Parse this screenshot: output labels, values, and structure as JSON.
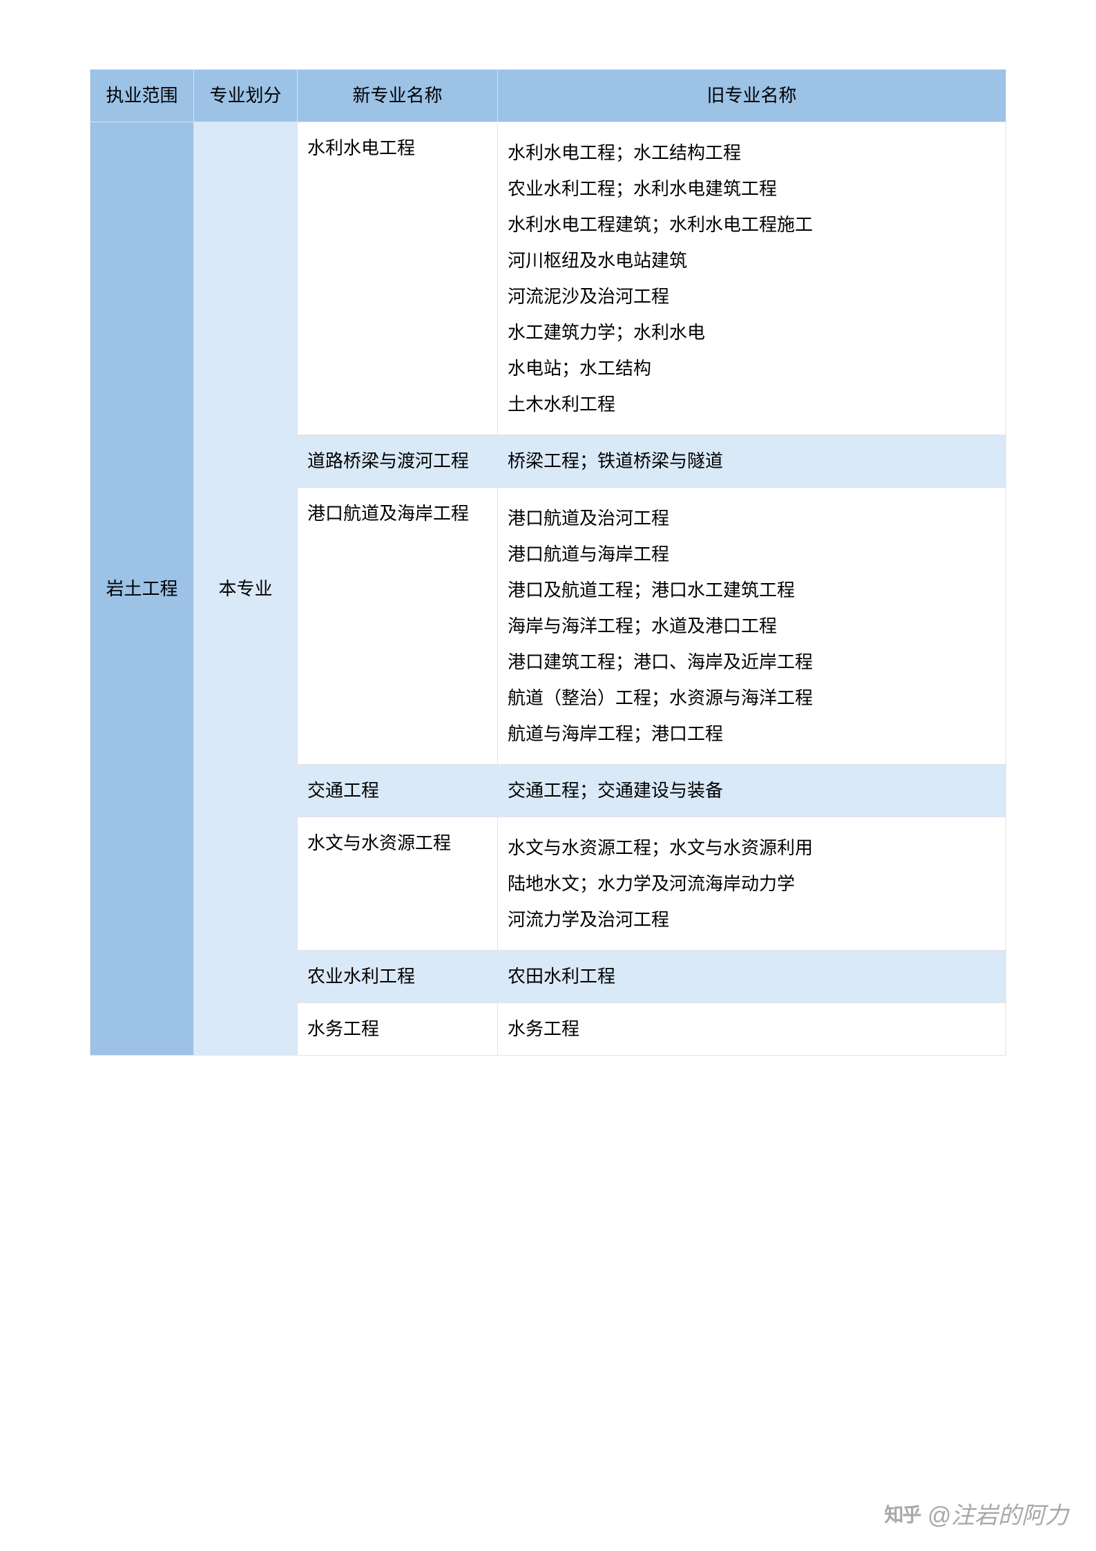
{
  "table": {
    "headers": {
      "scope": "执业范围",
      "division": "专业划分",
      "newMajor": "新专业名称",
      "oldMajor": "旧专业名称"
    },
    "scope_label": "岩土工程",
    "division_label": "本专业",
    "rows": [
      {
        "bg": "white",
        "newMajor": "水利水电工程",
        "oldMajor": "水利水电工程；水工结构工程\n农业水利工程；水利水电建筑工程\n水利水电工程建筑；水利水电工程施工\n河川枢纽及水电站建筑\n河流泥沙及治河工程\n水工建筑力学；水利水电\n水电站；水工结构\n土木水利工程"
      },
      {
        "bg": "light-blue",
        "newMajor": "道路桥梁与渡河工程",
        "oldMajor": "桥梁工程；铁道桥梁与隧道"
      },
      {
        "bg": "white",
        "newMajor": "港口航道及海岸工程",
        "oldMajor": "港口航道及治河工程\n港口航道与海岸工程\n港口及航道工程；港口水工建筑工程\n海岸与海洋工程；水道及港口工程\n港口建筑工程；港口、海岸及近岸工程\n航道（整治）工程；水资源与海洋工程\n航道与海岸工程；港口工程"
      },
      {
        "bg": "light-blue",
        "newMajor": "交通工程",
        "oldMajor": "交通工程；交通建设与装备"
      },
      {
        "bg": "white",
        "newMajor": "水文与水资源工程",
        "oldMajor": "水文与水资源工程；水文与水资源利用\n陆地水文；水力学及河流海岸动力学\n河流力学及治河工程"
      },
      {
        "bg": "light-blue",
        "newMajor": "农业水利工程",
        "oldMajor": "农田水利工程"
      },
      {
        "bg": "white",
        "newMajor": "水务工程",
        "oldMajor": "水务工程"
      }
    ]
  },
  "watermark": {
    "logo": "知乎",
    "text": "@注岩的阿力"
  },
  "styling": {
    "header_bg": "#9cc2e6",
    "scope_bg": "#9cc2e6",
    "division_bg": "#dae9f8",
    "cell_white": "#ffffff",
    "cell_light_blue": "#dae9f8",
    "border_color": "#e3e3e3",
    "font_size": 26,
    "watermark_color": "#a8a8a8"
  }
}
